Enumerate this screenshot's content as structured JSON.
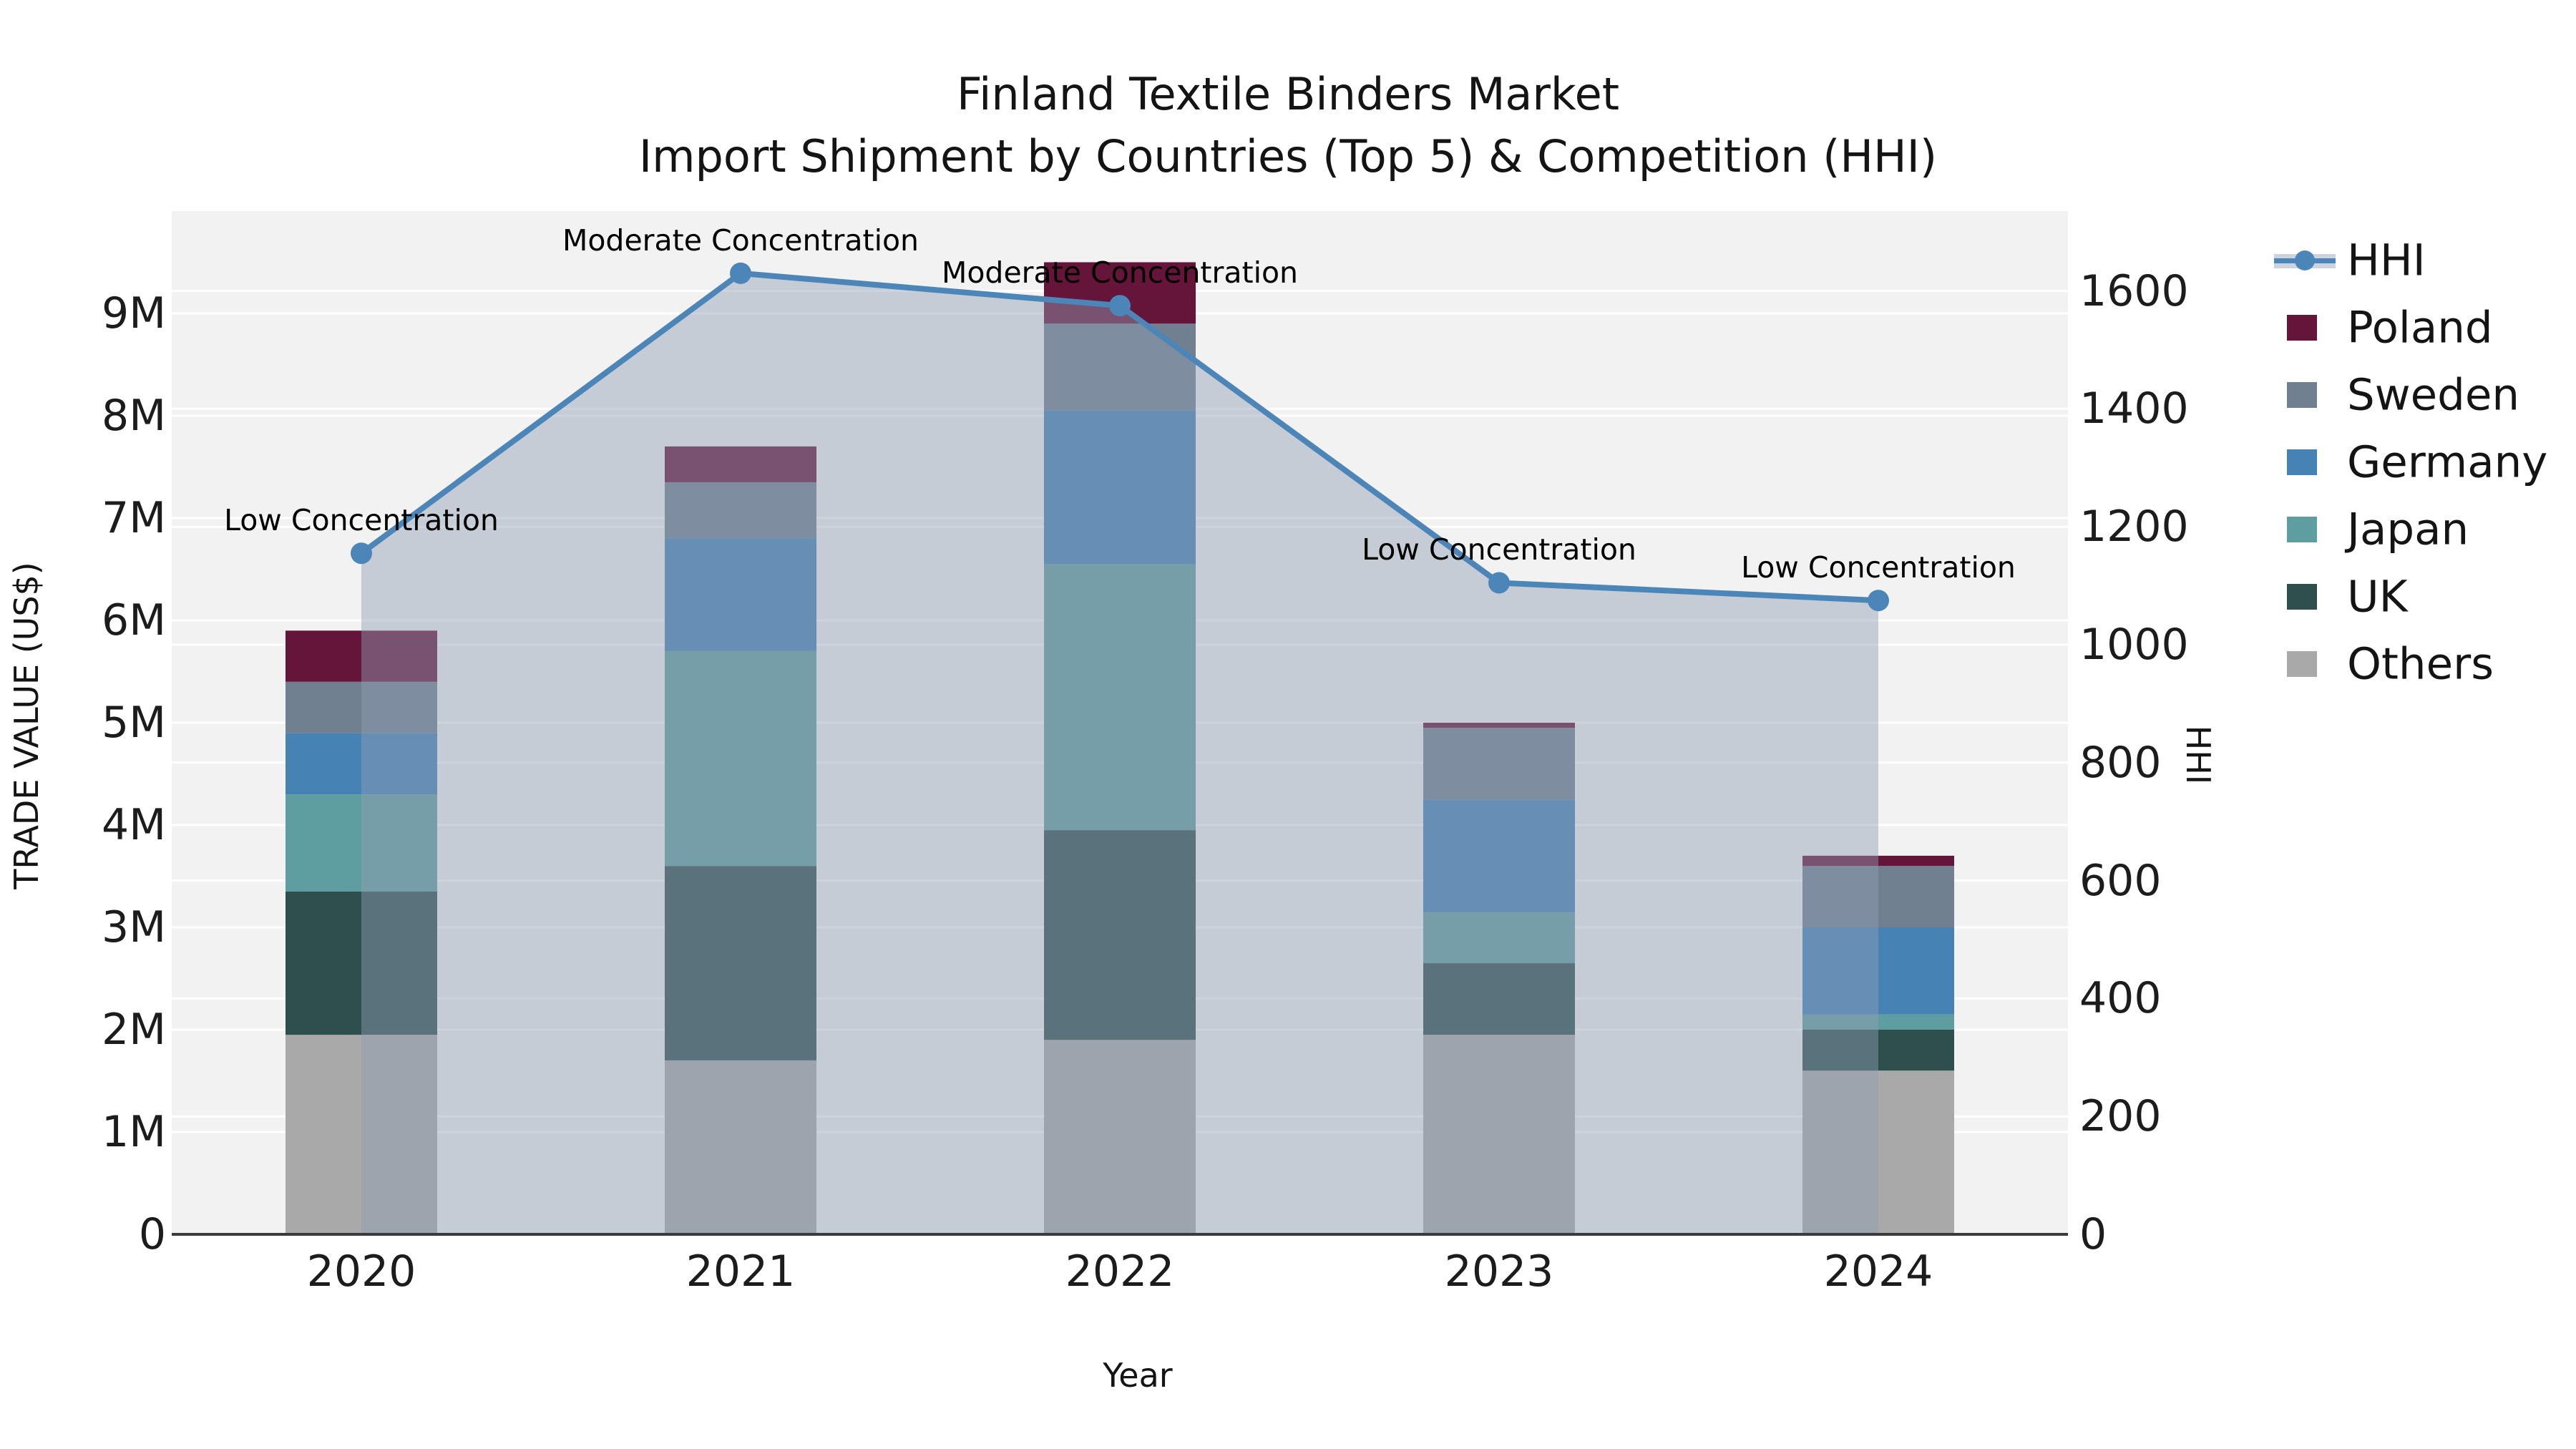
{
  "title": {
    "line1": "Finland Textile Binders Market",
    "line2": "Import Shipment by Countries (Top 5) & Competition (HHI)"
  },
  "axes": {
    "x": {
      "label": "Year",
      "tick_labels": [
        "2020",
        "2021",
        "2022",
        "2023",
        "2024"
      ]
    },
    "y_left": {
      "label": "TRADE VALUE (US$)",
      "tick_labels": [
        "0",
        "1M",
        "2M",
        "3M",
        "4M",
        "5M",
        "6M",
        "7M",
        "8M",
        "9M"
      ]
    },
    "y_right": {
      "label": "HHI",
      "tick_labels": [
        "0",
        "200",
        "400",
        "600",
        "800",
        "1000",
        "1200",
        "1400",
        "1600"
      ]
    }
  },
  "legend": {
    "items": [
      {
        "label": "HHI",
        "type": "line",
        "color": "#4C86B8"
      },
      {
        "label": "Poland",
        "type": "patch",
        "color": "#641539"
      },
      {
        "label": "Sweden",
        "type": "patch",
        "color": "#708090"
      },
      {
        "label": "Germany",
        "type": "patch",
        "color": "#4682B4"
      },
      {
        "label": "Japan",
        "type": "patch",
        "color": "#5F9EA0"
      },
      {
        "label": "UK",
        "type": "patch",
        "color": "#2F4F4F"
      },
      {
        "label": "Others",
        "type": "patch",
        "color": "#A9A9A9"
      }
    ]
  },
  "chart_data": {
    "type": "combo-stacked-bar-line",
    "categories": [
      "2020",
      "2021",
      "2022",
      "2023",
      "2024"
    ],
    "bar_value_unit": "million US$",
    "series": [
      {
        "name": "Others",
        "color": "#A9A9A9",
        "values": [
          1.95,
          1.7,
          1.9,
          1.95,
          1.6
        ]
      },
      {
        "name": "UK",
        "color": "#2F4F4F",
        "values": [
          1.4,
          1.9,
          2.05,
          0.7,
          0.4
        ]
      },
      {
        "name": "Japan",
        "color": "#5F9EA0",
        "values": [
          0.95,
          2.1,
          2.6,
          0.5,
          0.15
        ]
      },
      {
        "name": "Germany",
        "color": "#4682B4",
        "values": [
          0.6,
          1.1,
          1.5,
          1.1,
          0.85
        ]
      },
      {
        "name": "Sweden",
        "color": "#708090",
        "values": [
          0.5,
          0.55,
          0.85,
          0.7,
          0.6
        ]
      },
      {
        "name": "Poland",
        "color": "#641539",
        "values": [
          0.5,
          0.35,
          0.6,
          0.05,
          0.1
        ]
      }
    ],
    "line_series": {
      "name": "HHI",
      "axis": "right",
      "color": "#4C86B8",
      "area_fill": "rgba(145,158,180,0.45)",
      "values": [
        1155,
        1630,
        1575,
        1105,
        1075
      ]
    },
    "annotations": [
      {
        "category": "2020",
        "text": "Low Concentration"
      },
      {
        "category": "2021",
        "text": "Moderate Concentration"
      },
      {
        "category": "2022",
        "text": "Moderate Concentration"
      },
      {
        "category": "2023",
        "text": "Low Concentration"
      },
      {
        "category": "2024",
        "text": "Low Concentration"
      }
    ],
    "title": "Finland Textile Binders Market — Import Shipment by Countries (Top 5) & Competition (HHI)",
    "xlabel": "Year",
    "ylabel_left": "TRADE VALUE (US$)",
    "ylabel_right": "HHI",
    "ylim_left": [
      0,
      10
    ],
    "ylim_right": [
      0,
      1735
    ],
    "grid": true,
    "legend_position": "right"
  },
  "colors": {
    "figure_background": "#ffffff",
    "plot_background": "#f2f2f2",
    "gridline": "rgba(255,255,255,0.95)",
    "axis_line": "#3b3b3b",
    "text": "#1a1a1a"
  }
}
